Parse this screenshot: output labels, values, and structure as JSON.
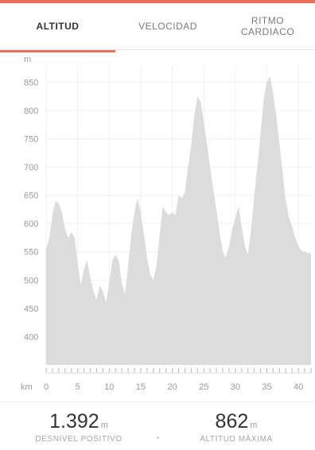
{
  "colors": {
    "accent": "#e8705a",
    "area_fill": "#dcdcdc",
    "grid": "#f0f0f0"
  },
  "tabs": [
    {
      "label_line1": "ALTITUD",
      "label_line2": "",
      "active": true
    },
    {
      "label_line1": "VELOCIDAD",
      "label_line2": "",
      "active": false
    },
    {
      "label_line1": "RITMO",
      "label_line2": "CARDIACO",
      "active": false
    }
  ],
  "chart_data": {
    "type": "area",
    "ylabel": "m",
    "xlabel": "km",
    "x_ticks": [
      "0",
      "5",
      "10",
      "15",
      "20",
      "25",
      "30",
      "35",
      "40"
    ],
    "y_ticks": [
      "400",
      "450",
      "500",
      "550",
      "600",
      "650",
      "700",
      "750",
      "800",
      "850"
    ],
    "xlim": [
      0,
      42
    ],
    "ylim": [
      350,
      880
    ],
    "x": [
      0,
      0.5,
      1,
      1.5,
      2,
      2.5,
      3,
      3.5,
      4,
      4.5,
      5,
      5.5,
      6,
      6.5,
      7,
      7.5,
      8,
      8.5,
      9,
      9.5,
      10,
      10.5,
      11,
      11.5,
      12,
      12.5,
      13,
      13.5,
      14,
      14.5,
      15,
      15.5,
      16,
      16.5,
      17,
      17.5,
      18,
      18.5,
      19,
      19.5,
      20,
      20.5,
      21,
      21.5,
      22,
      22.5,
      23,
      23.5,
      24,
      24.5,
      25,
      25.5,
      26,
      26.5,
      27,
      27.5,
      28,
      28.5,
      29,
      29.5,
      30,
      30.5,
      31,
      31.5,
      32,
      32.5,
      33,
      33.5,
      34,
      34.5,
      35,
      35.5,
      36,
      36.5,
      37,
      37.5,
      38,
      38.5,
      39,
      39.5,
      40,
      40.5,
      41,
      41.5,
      42
    ],
    "y": [
      555,
      575,
      615,
      640,
      635,
      620,
      590,
      575,
      585,
      575,
      530,
      490,
      520,
      535,
      505,
      480,
      465,
      490,
      480,
      460,
      495,
      535,
      545,
      535,
      495,
      475,
      525,
      580,
      620,
      645,
      620,
      580,
      540,
      510,
      500,
      525,
      580,
      630,
      620,
      615,
      620,
      615,
      650,
      645,
      655,
      700,
      740,
      790,
      825,
      815,
      780,
      740,
      700,
      660,
      625,
      585,
      550,
      540,
      560,
      590,
      610,
      630,
      595,
      560,
      545,
      590,
      650,
      700,
      760,
      820,
      850,
      860,
      830,
      790,
      740,
      690,
      640,
      610,
      595,
      575,
      560,
      552,
      550,
      548,
      547
    ]
  },
  "stats": [
    {
      "value": "1.392",
      "unit": "m",
      "label": "DESNIVEL POSITIVO"
    },
    {
      "value": "862",
      "unit": "m",
      "label": "ALTITUD MÁXIMA"
    }
  ]
}
